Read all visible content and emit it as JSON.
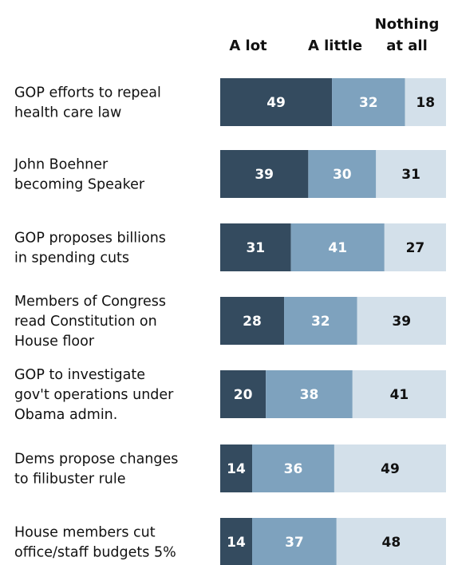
{
  "chart_data": {
    "type": "bar",
    "orientation": "horizontal",
    "stacked": true,
    "title": "",
    "xlabel": "",
    "ylabel": "",
    "xlim": [
      0,
      100
    ],
    "grid": false,
    "legend": "top",
    "categories": [
      "GOP efforts to repeal\nhealth care law",
      "John Boehner\nbecoming Speaker",
      "GOP proposes billions\nin spending cuts",
      "Members of Congress\nread Constitution on\nHouse floor",
      "GOP to investigate\ngov't operations under\nObama admin.",
      "Dems propose changes\nto filibuster rule",
      "House members cut\noffice/staff budgets 5%"
    ],
    "series": [
      {
        "name": "A lot",
        "color": "#344b5f",
        "label_color": "#ffffff",
        "values": [
          49,
          39,
          31,
          28,
          20,
          14,
          14
        ]
      },
      {
        "name": "A little",
        "color": "#7ea2be",
        "label_color": "#ffffff",
        "values": [
          32,
          30,
          41,
          32,
          38,
          36,
          37
        ]
      },
      {
        "name": "Nothing\nat all",
        "color": "#d3e0ea",
        "label_color": "#111111",
        "values": [
          18,
          31,
          27,
          39,
          41,
          49,
          48
        ]
      }
    ]
  }
}
